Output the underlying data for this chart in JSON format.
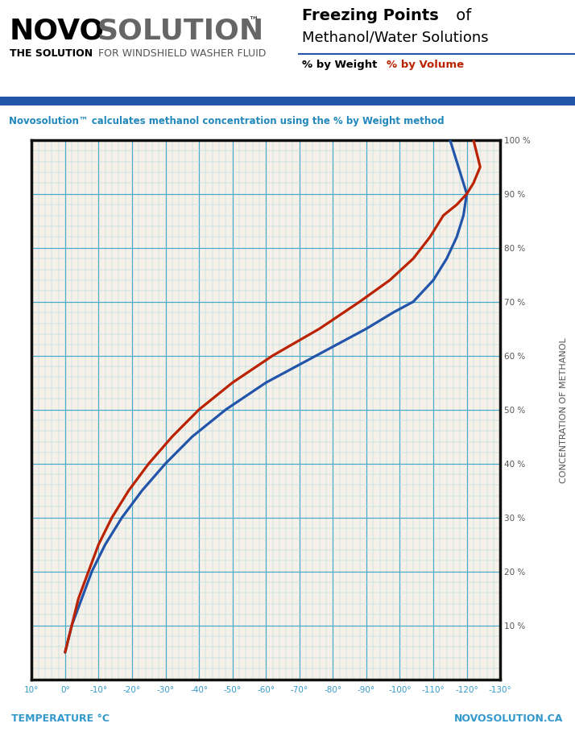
{
  "subtitle": "Novosolution™ calculates methanol concentration using the % by Weight method",
  "xlabel": "TEMPERATURE °C",
  "ylabel": "CONCENTRATION OF METHANOL",
  "footer_right": "NOVOSOLUTION.CA",
  "background_color": "#ffffff",
  "chart_bg": "#f5f0e8",
  "grid_major_color": "#4aabcc",
  "grid_minor_color": "#a8d8ea",
  "border_color": "#111111",
  "blue_line_color": "#2255aa",
  "red_line_color": "#bb2200",
  "axis_label_color": "#3399cc",
  "subtitle_color": "#2288bb",
  "divider_color": "#2255aa",
  "weight_x": [
    0,
    -2,
    -5,
    -8,
    -12,
    -17,
    -23,
    -30,
    -38,
    -48,
    -60,
    -75,
    -90,
    -98,
    -104,
    -110,
    -114,
    -117,
    -119,
    -120,
    -118,
    -115
  ],
  "weight_y": [
    5,
    10,
    15,
    20,
    25,
    30,
    35,
    40,
    45,
    50,
    55,
    60,
    65,
    68,
    70,
    74,
    78,
    82,
    86,
    90,
    94,
    100
  ],
  "volume_x": [
    0,
    -2,
    -4,
    -7,
    -10,
    -14,
    -19,
    -25,
    -32,
    -40,
    -50,
    -62,
    -76,
    -88,
    -97,
    -104,
    -109,
    -113,
    -117,
    -120,
    -122,
    -124,
    -122
  ],
  "volume_y": [
    5,
    10,
    15,
    20,
    25,
    30,
    35,
    40,
    45,
    50,
    55,
    60,
    65,
    70,
    74,
    78,
    82,
    86,
    88,
    90,
    92,
    95,
    100
  ]
}
